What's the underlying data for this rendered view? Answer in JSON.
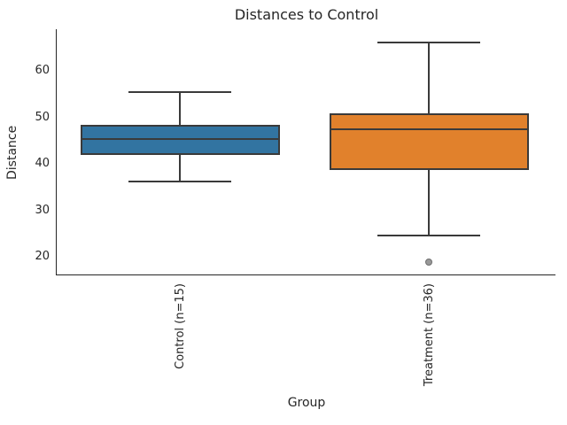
{
  "chart_data": {
    "type": "box",
    "title": "Distances to Control",
    "xlabel": "Group",
    "ylabel": "Distance",
    "categories": [
      "Control (n=15)",
      "Treatment (n=36)"
    ],
    "series": [
      {
        "name": "Control (n=15)",
        "whisker_low": 36.3,
        "q1": 42.0,
        "median": 45.3,
        "q3": 48.5,
        "whisker_high": 55.5,
        "outliers": [],
        "color": "#3274a1"
      },
      {
        "name": "Treatment (n=36)",
        "whisker_low": 24.6,
        "q1": 38.7,
        "median": 47.4,
        "q3": 50.9,
        "whisker_high": 66.1,
        "outliers": [
          18.8
        ],
        "color": "#e1812c"
      }
    ],
    "yticks": [
      20,
      30,
      40,
      50,
      60
    ],
    "ylim": [
      16,
      69
    ],
    "grid": false,
    "legend": false
  },
  "colors": {
    "control_box": "#3274a1",
    "treatment_box": "#e1812c",
    "box_edge": "#3a3a3a",
    "spine": "#262626",
    "text": "#262626",
    "outlier_fill": "#999999",
    "outlier_edge": "#6e6e6e",
    "background": "#ffffff"
  }
}
